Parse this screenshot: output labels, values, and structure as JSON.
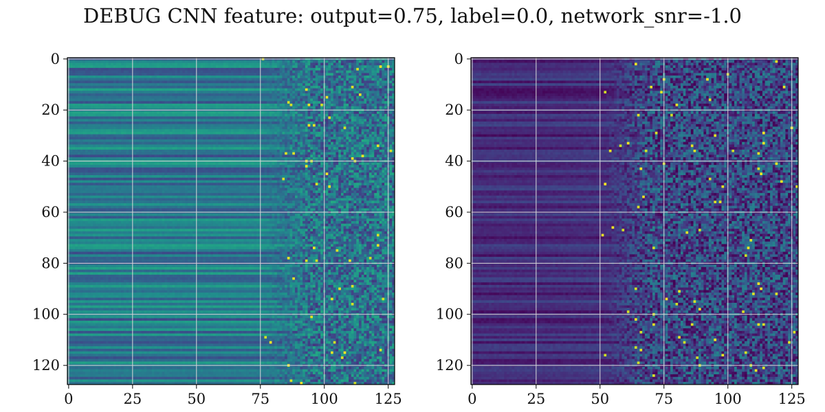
{
  "figure": {
    "title": "DEBUG CNN feature: output=0.75, label=0.0, network_snr=-1.0"
  },
  "chart_data": [
    {
      "type": "heatmap",
      "colormap": "viridis",
      "rows": 128,
      "cols": 128,
      "xlim": [
        0,
        127
      ],
      "ylim": [
        127,
        0
      ],
      "xticks": [
        0,
        25,
        50,
        75,
        100,
        125
      ],
      "yticks": [
        0,
        20,
        40,
        60,
        80,
        100,
        120
      ],
      "grid": true,
      "description_of_values": "rows are horizontal bands of roughly constant teal/green for columns 0-75, becoming noisy speckle for columns 75-127 with occasional bright yellow pixels",
      "value_range": [
        0,
        1
      ],
      "left_band_mean": 0.4,
      "right_band_mean": 0.38
    },
    {
      "type": "heatmap",
      "colormap": "viridis",
      "rows": 128,
      "cols": 128,
      "xlim": [
        0,
        127
      ],
      "ylim": [
        127,
        0
      ],
      "xticks": [
        0,
        25,
        50,
        75,
        100,
        125
      ],
      "yticks": [
        0,
        20,
        40,
        60,
        80,
        100,
        120
      ],
      "grid": true,
      "description_of_values": "mostly dark purple horizontal bands for columns 0-50, increasingly speckled blue/teal noise for columns 50-127 with a few bright yellow pixels",
      "value_range": [
        0,
        1
      ],
      "left_band_mean": 0.12,
      "right_band_mean": 0.22
    }
  ]
}
